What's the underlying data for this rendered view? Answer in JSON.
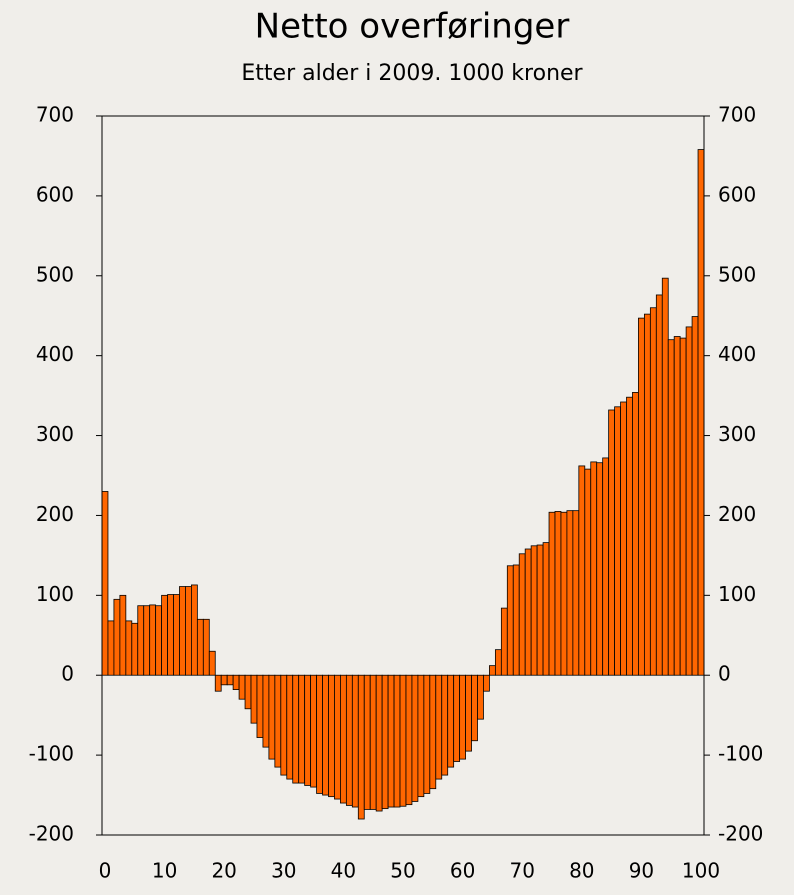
{
  "chart_data": {
    "type": "bar",
    "title": "Netto overføringer",
    "subtitle": "Etter alder i 2009. 1000 kroner",
    "x": [
      0,
      1,
      2,
      3,
      4,
      5,
      6,
      7,
      8,
      9,
      10,
      11,
      12,
      13,
      14,
      15,
      16,
      17,
      18,
      19,
      20,
      21,
      22,
      23,
      24,
      25,
      26,
      27,
      28,
      29,
      30,
      31,
      32,
      33,
      34,
      35,
      36,
      37,
      38,
      39,
      40,
      41,
      42,
      43,
      44,
      45,
      46,
      47,
      48,
      49,
      50,
      51,
      52,
      53,
      54,
      55,
      56,
      57,
      58,
      59,
      60,
      61,
      62,
      63,
      64,
      65,
      66,
      67,
      68,
      69,
      70,
      71,
      72,
      73,
      74,
      75,
      76,
      77,
      78,
      79,
      80,
      81,
      82,
      83,
      84,
      85,
      86,
      87,
      88,
      89,
      90,
      91,
      92,
      93,
      94,
      95,
      96,
      97,
      98,
      99,
      100
    ],
    "values": [
      230,
      68,
      95,
      100,
      68,
      65,
      87,
      87,
      88,
      87,
      100,
      101,
      101,
      111,
      111,
      113,
      70,
      70,
      30,
      -20,
      -12,
      -12,
      -18,
      -30,
      -42,
      -60,
      -78,
      -90,
      -105,
      -115,
      -125,
      -130,
      -135,
      -135,
      -138,
      -140,
      -148,
      -150,
      -152,
      -155,
      -160,
      -163,
      -165,
      -180,
      -168,
      -168,
      -170,
      -167,
      -165,
      -165,
      -164,
      -162,
      -158,
      -152,
      -148,
      -142,
      -130,
      -125,
      -115,
      -108,
      -105,
      -95,
      -82,
      -55,
      -20,
      12,
      32,
      84,
      137,
      138,
      152,
      158,
      162,
      163,
      166,
      204,
      205,
      204,
      206,
      206,
      262,
      258,
      267,
      266,
      272,
      332,
      336,
      342,
      348,
      354,
      447,
      452,
      460,
      476,
      497,
      420,
      424,
      422,
      436,
      449,
      658
    ],
    "color": "#ff6600",
    "xlim": [
      -0.5,
      100.5
    ],
    "xticks": [
      0,
      10,
      20,
      30,
      40,
      50,
      60,
      70,
      80,
      90,
      100
    ],
    "ylim": [
      -200,
      700
    ],
    "yticks": [
      -200,
      -100,
      0,
      100,
      200,
      300,
      400,
      500,
      600,
      700
    ],
    "y2lim": [
      -200,
      700
    ],
    "y2ticks": [
      -200,
      -100,
      0,
      100,
      200,
      300,
      400,
      500,
      600,
      700
    ],
    "grid": false
  }
}
